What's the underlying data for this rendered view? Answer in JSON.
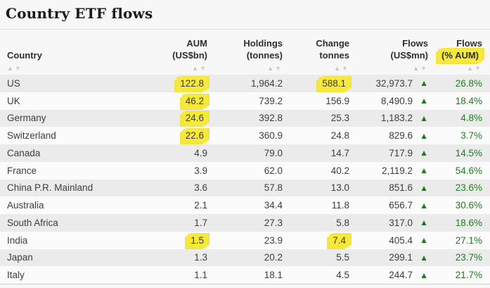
{
  "page": {
    "title": "Country ETF flows"
  },
  "colors": {
    "highlight_yellow": "#f6e93a",
    "positive_green": "#1e7d1e",
    "row_alt_gray": "#ebebeb",
    "sort_arrow_gray": "#c6c9cc"
  },
  "icons": {
    "sort_asc": "▲",
    "sort_desc": "▼",
    "flow_up_triangle": "▲"
  },
  "table": {
    "columns": [
      {
        "id": "country",
        "line1": "",
        "line2": "Country",
        "align": "left",
        "highlight": false
      },
      {
        "id": "aum",
        "line1": "AUM",
        "line2": "(US$bn)",
        "align": "right",
        "highlight": false
      },
      {
        "id": "holdings",
        "line1": "Holdings",
        "line2": "(tonnes)",
        "align": "right",
        "highlight": false
      },
      {
        "id": "change",
        "line1": "Change",
        "line2": "tonnes",
        "align": "right",
        "highlight": false
      },
      {
        "id": "flows",
        "line1": "Flows",
        "line2": "(US$mn)",
        "align": "right",
        "highlight": false
      },
      {
        "id": "flows_pct",
        "line1": "Flows",
        "line2": "(% AUM)",
        "align": "right",
        "highlight": true
      }
    ],
    "rows": [
      {
        "country": "US",
        "aum": "122.8",
        "holdings": "1,964.2",
        "change": "588.1",
        "flows": "32,973.7",
        "flows_dir": "up",
        "flows_pct": "26.8%",
        "highlights": [
          "aum",
          "change"
        ]
      },
      {
        "country": "UK",
        "aum": "46.2",
        "holdings": "739.2",
        "change": "156.9",
        "flows": "8,490.9",
        "flows_dir": "up",
        "flows_pct": "18.4%",
        "highlights": [
          "aum"
        ]
      },
      {
        "country": "Germany",
        "aum": "24.6",
        "holdings": "392.8",
        "change": "25.3",
        "flows": "1,183.2",
        "flows_dir": "up",
        "flows_pct": "4.8%",
        "highlights": [
          "aum"
        ]
      },
      {
        "country": "Switzerland",
        "aum": "22.6",
        "holdings": "360.9",
        "change": "24.8",
        "flows": "829.6",
        "flows_dir": "up",
        "flows_pct": "3.7%",
        "highlights": [
          "aum"
        ]
      },
      {
        "country": "Canada",
        "aum": "4.9",
        "holdings": "79.0",
        "change": "14.7",
        "flows": "717.9",
        "flows_dir": "up",
        "flows_pct": "14.5%",
        "highlights": []
      },
      {
        "country": "France",
        "aum": "3.9",
        "holdings": "62.0",
        "change": "40.2",
        "flows": "2,119.2",
        "flows_dir": "up",
        "flows_pct": "54.6%",
        "highlights": []
      },
      {
        "country": "China P.R. Mainland",
        "aum": "3.6",
        "holdings": "57.8",
        "change": "13.0",
        "flows": "851.6",
        "flows_dir": "up",
        "flows_pct": "23.6%",
        "highlights": []
      },
      {
        "country": "Australia",
        "aum": "2.1",
        "holdings": "34.4",
        "change": "11.8",
        "flows": "656.7",
        "flows_dir": "up",
        "flows_pct": "30.6%",
        "highlights": []
      },
      {
        "country": "South Africa",
        "aum": "1.7",
        "holdings": "27.3",
        "change": "5.8",
        "flows": "317.0",
        "flows_dir": "up",
        "flows_pct": "18.6%",
        "highlights": []
      },
      {
        "country": "India",
        "aum": "1.5",
        "holdings": "23.9",
        "change": "7.4",
        "flows": "405.4",
        "flows_dir": "up",
        "flows_pct": "27.1%",
        "highlights": [
          "aum",
          "change"
        ]
      },
      {
        "country": "Japan",
        "aum": "1.3",
        "holdings": "20.2",
        "change": "5.5",
        "flows": "299.1",
        "flows_dir": "up",
        "flows_pct": "23.7%",
        "highlights": []
      },
      {
        "country": "Italy",
        "aum": "1.1",
        "holdings": "18.1",
        "change": "4.5",
        "flows": "244.7",
        "flows_dir": "up",
        "flows_pct": "21.7%",
        "highlights": []
      }
    ]
  },
  "chart_data": {
    "type": "table",
    "title": "Country ETF flows",
    "columns": [
      "Country",
      "AUM (US$bn)",
      "Holdings (tonnes)",
      "Change tonnes",
      "Flows (US$mn)",
      "Flows (% AUM)"
    ],
    "rows": [
      [
        "US",
        122.8,
        1964.2,
        588.1,
        32973.7,
        26.8
      ],
      [
        "UK",
        46.2,
        739.2,
        156.9,
        8490.9,
        18.4
      ],
      [
        "Germany",
        24.6,
        392.8,
        25.3,
        1183.2,
        4.8
      ],
      [
        "Switzerland",
        22.6,
        360.9,
        24.8,
        829.6,
        3.7
      ],
      [
        "Canada",
        4.9,
        79.0,
        14.7,
        717.9,
        14.5
      ],
      [
        "France",
        3.9,
        62.0,
        40.2,
        2119.2,
        54.6
      ],
      [
        "China P.R. Mainland",
        3.6,
        57.8,
        13.0,
        851.6,
        23.6
      ],
      [
        "Australia",
        2.1,
        34.4,
        11.8,
        656.7,
        30.6
      ],
      [
        "South Africa",
        1.7,
        27.3,
        5.8,
        317.0,
        18.6
      ],
      [
        "India",
        1.5,
        23.9,
        7.4,
        405.4,
        27.1
      ],
      [
        "Japan",
        1.3,
        20.2,
        5.5,
        299.1,
        23.7
      ],
      [
        "Italy",
        1.1,
        18.1,
        4.5,
        244.7,
        21.7
      ]
    ],
    "annotations": "All Flows (US$mn) values carry a green up-triangle; Flows (% AUM) values rendered in green. Yellow marker highlights on header cell (% AUM), AUM cells of US, UK, Germany, Switzerland, India, and Change cells of US and India."
  }
}
